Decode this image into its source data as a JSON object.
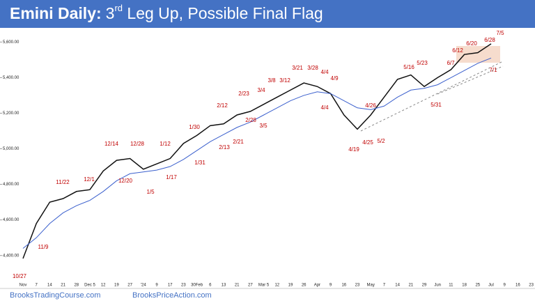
{
  "chart_data": {
    "type": "line",
    "title": {
      "bold": "Emini Daily:",
      "lead": "3",
      "sup": "rd",
      "rest": " Leg Up, Possible Final Flag"
    },
    "categories": [
      "Nov",
      "7",
      "14",
      "21",
      "28",
      "Dec 5",
      "12",
      "19",
      "27",
      "'24",
      "9",
      "17",
      "23",
      "30Feb",
      "6",
      "13",
      "21",
      "27",
      "Mar 5",
      "12",
      "19",
      "26",
      "Apr",
      "9",
      "16",
      "23",
      "May",
      "7",
      "14",
      "21",
      "29",
      "Jun",
      "11",
      "18",
      "25",
      "Jul",
      "9",
      "16",
      "23"
    ],
    "series": [
      {
        "name": "Price",
        "color": "#111111",
        "values": [
          4383,
          4580,
          4700,
          4720,
          4760,
          4770,
          4875,
          4935,
          4945,
          4885,
          4915,
          4945,
          5030,
          5075,
          5130,
          5140,
          5190,
          5210,
          5250,
          5290,
          5330,
          5370,
          5350,
          5310,
          5190,
          5110,
          5190,
          5290,
          5390,
          5415,
          5350,
          5400,
          5445,
          5530,
          5540,
          5590,
          null,
          null,
          null
        ]
      },
      {
        "name": "Moving Average",
        "color": "#3a5fcd",
        "values": [
          4440,
          4500,
          4580,
          4640,
          4680,
          4710,
          4760,
          4820,
          4860,
          4870,
          4880,
          4900,
          4940,
          4990,
          5040,
          5080,
          5120,
          5150,
          5190,
          5230,
          5270,
          5300,
          5320,
          5310,
          5270,
          5230,
          5220,
          5240,
          5290,
          5330,
          5340,
          5360,
          5400,
          5440,
          5480,
          5510,
          null,
          null,
          null
        ]
      }
    ],
    "ylim": [
      4250,
      5660
    ],
    "yticks": [
      {
        "value": 4400,
        "label": "4,400.00"
      },
      {
        "value": 4600,
        "label": "4,600.00"
      },
      {
        "value": 4800,
        "label": "4,800.00"
      },
      {
        "value": 5000,
        "label": "5,000.00"
      },
      {
        "value": 5200,
        "label": "5,200.00"
      },
      {
        "value": 5400,
        "label": "5,400.00"
      },
      {
        "value": 5600,
        "label": "5,600.00"
      }
    ],
    "annotations": [
      "10/27",
      "11/9",
      "11/22",
      "12/1",
      "12/14",
      "12/20",
      "12/28",
      "1/5",
      "1/12",
      "1/17",
      "1/30",
      "1/31",
      "2/12",
      "2/13",
      "2/21",
      "2/23",
      "2/28",
      "3/4",
      "3/5",
      "3/8",
      "3/12",
      "3/21",
      "3/28",
      "4/4",
      "4/9",
      "4/4",
      "4/26",
      "4/19",
      "4/25",
      "5/2",
      "5/16",
      "5/23",
      "5/31",
      "6/7",
      "6/12",
      "6/20",
      "6/28",
      "7/5",
      "7/1"
    ]
  },
  "footer": {
    "left": "BrooksTradingCourse.com",
    "right": "BrooksPriceAction.com"
  }
}
